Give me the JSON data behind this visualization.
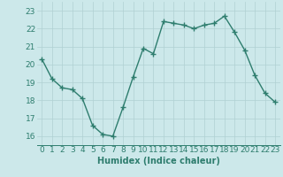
{
  "xlabel": "Humidex (Indice chaleur)",
  "ylabel": "",
  "x_values": [
    0,
    1,
    2,
    3,
    4,
    5,
    6,
    7,
    8,
    9,
    10,
    11,
    12,
    13,
    14,
    15,
    16,
    17,
    18,
    19,
    20,
    21,
    22,
    23
  ],
  "y_values": [
    20.3,
    19.2,
    18.7,
    18.6,
    18.1,
    16.6,
    16.1,
    16.0,
    17.6,
    19.3,
    20.9,
    20.6,
    22.4,
    22.3,
    22.2,
    22.0,
    22.2,
    22.3,
    22.7,
    21.8,
    20.8,
    19.4,
    18.4,
    17.9
  ],
  "ylim": [
    15.5,
    23.5
  ],
  "xlim": [
    -0.5,
    23.5
  ],
  "yticks": [
    16,
    17,
    18,
    19,
    20,
    21,
    22,
    23
  ],
  "xticks": [
    0,
    1,
    2,
    3,
    4,
    5,
    6,
    7,
    8,
    9,
    10,
    11,
    12,
    13,
    14,
    15,
    16,
    17,
    18,
    19,
    20,
    21,
    22,
    23
  ],
  "line_color": "#2e7d6e",
  "marker_color": "#2e7d6e",
  "bg_color": "#cce8ea",
  "grid_color": "#b0d0d2",
  "axis_color": "#2e7d6e",
  "tick_label_color": "#2e7d6e",
  "xlabel_color": "#2e7d6e",
  "marker": "+",
  "marker_size": 4,
  "line_width": 1.0,
  "xlabel_fontsize": 7,
  "tick_fontsize": 6.5
}
